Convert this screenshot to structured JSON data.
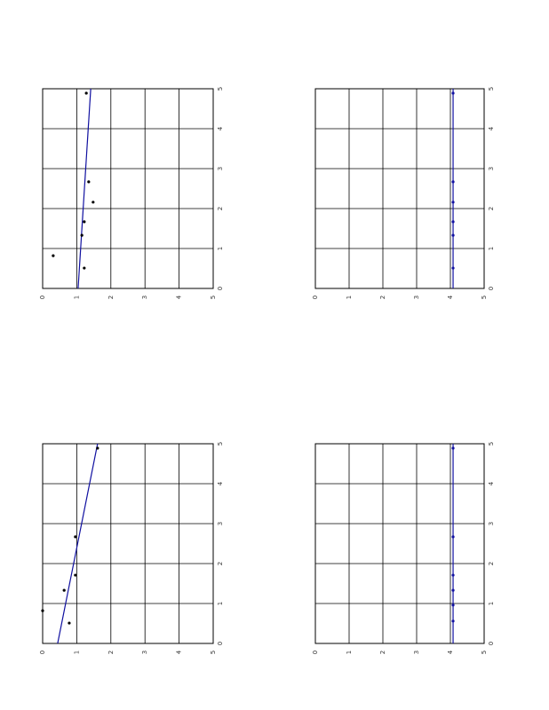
{
  "chart_data": [
    {
      "type": "scatter",
      "xlim": [
        0,
        5
      ],
      "ylim": [
        0,
        5
      ],
      "xticks": [
        0,
        1,
        2,
        3,
        4,
        5
      ],
      "yticks": [
        0,
        1,
        2,
        3,
        4,
        5
      ],
      "grid": true,
      "x": [
        0.82,
        0.51,
        1.33,
        1.67,
        2.67,
        2.16,
        4.89
      ],
      "series": [
        {
          "color": "#000000",
          "values": [
            0.31,
            1.22,
            1.15,
            1.22,
            1.35,
            1.48,
            1.28
          ]
        }
      ],
      "fit": {
        "color": "#1010a0",
        "x": [
          0,
          5
        ],
        "values": [
          1.04,
          1.41
        ]
      }
    },
    {
      "type": "scatter",
      "xlim": [
        0,
        5
      ],
      "ylim": [
        0,
        5
      ],
      "xticks": [
        0,
        1,
        2,
        3,
        4,
        5
      ],
      "yticks": [
        0,
        1,
        2,
        3,
        4,
        5
      ],
      "grid": true,
      "x": [
        0.51,
        1.33,
        1.67,
        2.16,
        2.67,
        4.89
      ],
      "series": [
        {
          "color": "#1010a0",
          "values": [
            4.08,
            4.08,
            4.08,
            4.08,
            4.08,
            4.08
          ]
        }
      ],
      "fit": {
        "color": "#1010a0",
        "x": [
          0,
          5
        ],
        "values": [
          4.08,
          4.08
        ]
      }
    },
    {
      "type": "scatter",
      "xlim": [
        0,
        5
      ],
      "ylim": [
        0,
        5
      ],
      "xticks": [
        0,
        1,
        2,
        3,
        4,
        5
      ],
      "yticks": [
        0,
        1,
        2,
        3,
        4,
        5
      ],
      "grid": true,
      "x": [
        0.82,
        1.33,
        0.51,
        1.71,
        2.67,
        4.89
      ],
      "series": [
        {
          "color": "#000000",
          "values": [
            0,
            0.63,
            0.78,
            0.96,
            0.96,
            1.61
          ]
        }
      ],
      "fit": {
        "color": "#1010a0",
        "x": [
          0,
          5
        ],
        "values": [
          0.44,
          1.61
        ]
      }
    },
    {
      "type": "scatter",
      "xlim": [
        0,
        5
      ],
      "ylim": [
        0,
        5
      ],
      "xticks": [
        0,
        1,
        2,
        3,
        4,
        5
      ],
      "yticks": [
        0,
        1,
        2,
        3,
        4,
        5
      ],
      "grid": true,
      "x": [
        0.56,
        0.96,
        1.33,
        1.71,
        2.67,
        4.89
      ],
      "series": [
        {
          "color": "#1010a0",
          "values": [
            4.08,
            4.08,
            4.08,
            4.08,
            4.08,
            4.08
          ]
        }
      ],
      "fit": {
        "color": "#1010a0",
        "x": [
          0,
          5
        ],
        "values": [
          4.08,
          4.08
        ]
      }
    }
  ]
}
